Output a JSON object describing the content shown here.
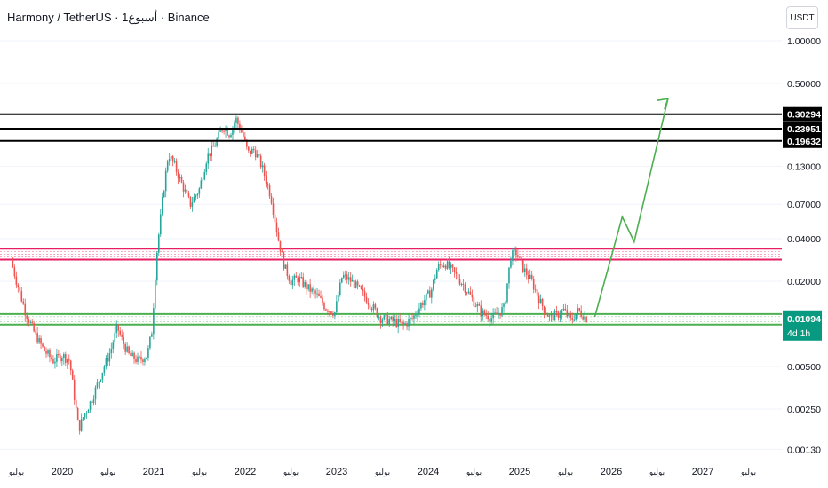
{
  "header": {
    "title": "Harmony / TetherUS · 1أسبوع · Binance",
    "currency": "USDT"
  },
  "chart_data": {
    "type": "candlestick",
    "y_scale": "log",
    "ylim": [
      0.001,
      1.3
    ],
    "y_ticks": [
      "1.00000",
      "0.50000",
      "0.13000",
      "0.07000",
      "0.04000",
      "0.02000",
      "0.00500",
      "0.00250",
      "0.00130"
    ],
    "x_labels": [
      {
        "t": 2019.5,
        "label": "يوليو",
        "small": true
      },
      {
        "t": 2020.0,
        "label": "2020",
        "small": false
      },
      {
        "t": 2020.5,
        "label": "يوليو",
        "small": true
      },
      {
        "t": 2021.0,
        "label": "2021",
        "small": false
      },
      {
        "t": 2021.5,
        "label": "يوليو",
        "small": true
      },
      {
        "t": 2022.0,
        "label": "2022",
        "small": false
      },
      {
        "t": 2022.5,
        "label": "يوليو",
        "small": true
      },
      {
        "t": 2023.0,
        "label": "2023",
        "small": false
      },
      {
        "t": 2023.5,
        "label": "يوليو",
        "small": true
      },
      {
        "t": 2024.0,
        "label": "2024",
        "small": false
      },
      {
        "t": 2024.5,
        "label": "يوليو",
        "small": true
      },
      {
        "t": 2025.0,
        "label": "2025",
        "small": false
      },
      {
        "t": 2025.5,
        "label": "يوليو",
        "small": true
      },
      {
        "t": 2026.0,
        "label": "2026",
        "small": false
      },
      {
        "t": 2026.5,
        "label": "يوليو",
        "small": true
      },
      {
        "t": 2027.0,
        "label": "2027",
        "small": false
      },
      {
        "t": 2027.5,
        "label": "يوليو",
        "small": true
      }
    ],
    "price_anchors": [
      [
        2019.46,
        0.028
      ],
      [
        2019.52,
        0.02
      ],
      [
        2019.62,
        0.012
      ],
      [
        2019.72,
        0.0085
      ],
      [
        2019.82,
        0.0065
      ],
      [
        2019.92,
        0.0055
      ],
      [
        2020.02,
        0.006
      ],
      [
        2020.1,
        0.0055
      ],
      [
        2020.2,
        0.0018
      ],
      [
        2020.25,
        0.0022
      ],
      [
        2020.35,
        0.003
      ],
      [
        2020.45,
        0.0045
      ],
      [
        2020.55,
        0.0065
      ],
      [
        2020.62,
        0.0095
      ],
      [
        2020.68,
        0.0075
      ],
      [
        2020.75,
        0.006
      ],
      [
        2020.85,
        0.0055
      ],
      [
        2020.95,
        0.006
      ],
      [
        2021.0,
        0.009
      ],
      [
        2021.05,
        0.03
      ],
      [
        2021.12,
        0.08
      ],
      [
        2021.18,
        0.16
      ],
      [
        2021.25,
        0.13
      ],
      [
        2021.32,
        0.1
      ],
      [
        2021.42,
        0.07
      ],
      [
        2021.52,
        0.09
      ],
      [
        2021.6,
        0.15
      ],
      [
        2021.68,
        0.18
      ],
      [
        2021.78,
        0.25
      ],
      [
        2021.85,
        0.22
      ],
      [
        2021.92,
        0.28
      ],
      [
        2022.0,
        0.21
      ],
      [
        2022.05,
        0.16
      ],
      [
        2022.12,
        0.17
      ],
      [
        2022.2,
        0.13
      ],
      [
        2022.3,
        0.08
      ],
      [
        2022.38,
        0.04
      ],
      [
        2022.45,
        0.025
      ],
      [
        2022.52,
        0.02
      ],
      [
        2022.6,
        0.021
      ],
      [
        2022.7,
        0.018
      ],
      [
        2022.8,
        0.016
      ],
      [
        2022.9,
        0.013
      ],
      [
        2023.0,
        0.012
      ],
      [
        2023.08,
        0.022
      ],
      [
        2023.18,
        0.02
      ],
      [
        2023.28,
        0.017
      ],
      [
        2023.38,
        0.014
      ],
      [
        2023.5,
        0.011
      ],
      [
        2023.62,
        0.0105
      ],
      [
        2023.75,
        0.0098
      ],
      [
        2023.85,
        0.011
      ],
      [
        2023.95,
        0.014
      ],
      [
        2024.05,
        0.017
      ],
      [
        2024.12,
        0.025
      ],
      [
        2024.2,
        0.027
      ],
      [
        2024.3,
        0.023
      ],
      [
        2024.4,
        0.019
      ],
      [
        2024.5,
        0.015
      ],
      [
        2024.6,
        0.012
      ],
      [
        2024.72,
        0.011
      ],
      [
        2024.85,
        0.013
      ],
      [
        2024.92,
        0.03
      ],
      [
        2024.98,
        0.032
      ],
      [
        2025.05,
        0.025
      ],
      [
        2025.15,
        0.02
      ],
      [
        2025.25,
        0.014
      ],
      [
        2025.35,
        0.011
      ],
      [
        2025.42,
        0.0115
      ],
      [
        2025.5,
        0.0125
      ],
      [
        2025.58,
        0.0105
      ],
      [
        2025.66,
        0.0125
      ],
      [
        2025.74,
        0.011
      ]
    ],
    "current_price": "0.01094",
    "countdown": "4d 1h",
    "resistance_levels": [
      {
        "price": 0.30294,
        "label": "0.30294"
      },
      {
        "price": 0.23951,
        "label": "0.23951"
      },
      {
        "price": 0.19632,
        "label": "0.19632"
      }
    ],
    "red_zone": [
      0.034,
      0.0285
    ],
    "green_zone": [
      0.01175,
      0.0099
    ],
    "forecast_path": [
      [
        2025.82,
        0.0112
      ],
      [
        2026.12,
        0.057
      ],
      [
        2026.25,
        0.038
      ],
      [
        2026.62,
        0.39
      ]
    ],
    "colors": {
      "up": "#26a69a",
      "down": "#ef5350",
      "resistance": "#000000",
      "red_zone": "#e91e63",
      "green_zone": "#4caf50",
      "forecast": "#4caf50",
      "price_tag": "#089981",
      "grid": "#f0f3fa"
    }
  }
}
